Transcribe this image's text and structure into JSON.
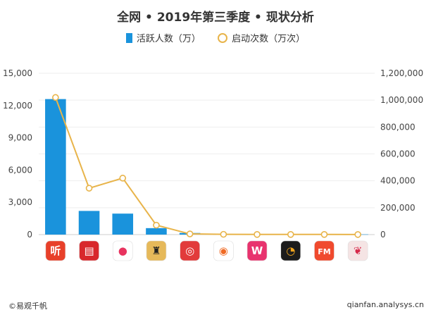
{
  "title": "全网 • 2019年第三季度 • 现状分析",
  "legend": {
    "bar_label": "活跃人数（万）",
    "line_label": "启动次数（万次）"
  },
  "footer": {
    "left": "©易观千帆",
    "right": "qianfan.analysys.cn"
  },
  "colors": {
    "bar": "#1a93dc",
    "line": "#e8b44a",
    "grid": "#eeeeee",
    "axis": "#cccccc",
    "tick": "#444444"
  },
  "chart_data": {
    "type": "bar",
    "categories": [
      "听",
      "收音机",
      "粉色圆形",
      "企鹅FM",
      "红色耳机",
      "橙色声波",
      "粉色W",
      "黑金图标",
      "FM",
      "红色果子"
    ],
    "category_icons": [
      {
        "bg": "#e8402a",
        "fg": "#ffffff",
        "glyph": "听"
      },
      {
        "bg": "#d8282c",
        "fg": "#ffffff",
        "glyph": "▤"
      },
      {
        "bg": "#ffffff",
        "fg": "#e8335f",
        "glyph": "●"
      },
      {
        "bg": "#e6b95a",
        "fg": "#222222",
        "glyph": "♜"
      },
      {
        "bg": "#e23b3b",
        "fg": "#ffffff",
        "glyph": "◎"
      },
      {
        "bg": "#ffffff",
        "fg": "#f06a24",
        "glyph": "◉"
      },
      {
        "bg": "#e8336e",
        "fg": "#ffffff",
        "glyph": "W"
      },
      {
        "bg": "#1c1c1c",
        "fg": "#f0a41c",
        "glyph": "◔"
      },
      {
        "bg": "#f04a2e",
        "fg": "#ffffff",
        "glyph": "FM"
      },
      {
        "bg": "#f5e4e4",
        "fg": "#d6294a",
        "glyph": "❦"
      }
    ],
    "series": [
      {
        "name": "活跃人数（万）",
        "type": "bar",
        "axis": "left",
        "values": [
          12600,
          2200,
          1950,
          600,
          150,
          20,
          20,
          20,
          20,
          20
        ]
      },
      {
        "name": "启动次数（万次）",
        "type": "line",
        "axis": "right",
        "values": [
          1020000,
          345000,
          420000,
          70000,
          5000,
          2000,
          1000,
          1000,
          1000,
          500
        ]
      }
    ],
    "y_left": {
      "min": 0,
      "max": 15000,
      "ticks": [
        "0",
        "3,000",
        "6,000",
        "9,000",
        "12,000",
        "15,000"
      ]
    },
    "y_right": {
      "min": 0,
      "max": 1200000,
      "ticks": [
        "0",
        "200,000",
        "400,000",
        "600,000",
        "800,000",
        "1,000,000",
        "1,200,000"
      ]
    },
    "grid": true,
    "legend_position": "top"
  }
}
